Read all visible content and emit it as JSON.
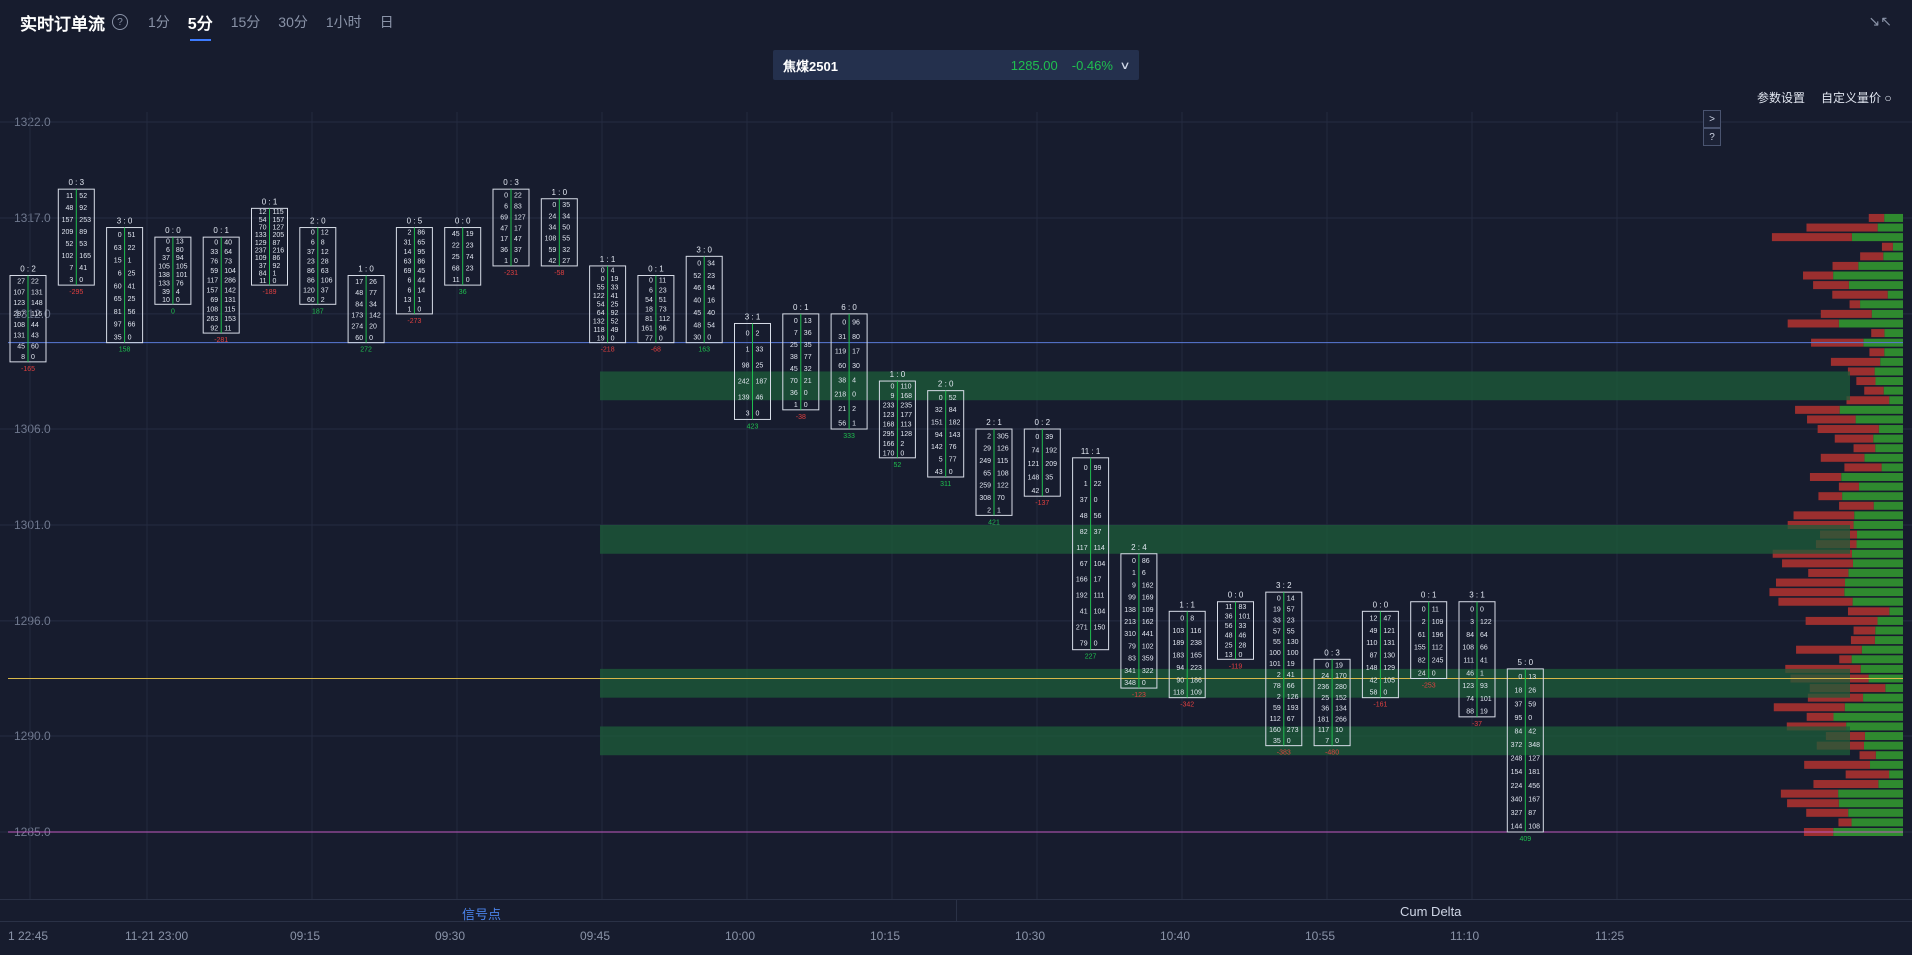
{
  "header": {
    "title": "实时订单流",
    "help": "?",
    "tabs": [
      {
        "label": "1分",
        "active": false
      },
      {
        "label": "5分",
        "active": true
      },
      {
        "label": "15分",
        "active": false
      },
      {
        "label": "30分",
        "active": false
      },
      {
        "label": "1小时",
        "active": false
      },
      {
        "label": "日",
        "active": false
      }
    ]
  },
  "symbol": {
    "name": "焦煤2501",
    "price": "1285.00",
    "change": "-0.46%"
  },
  "actions": {
    "params": "参数设置",
    "custom_price": "自定义量价",
    "side_expand": ">",
    "side_help": "?"
  },
  "bottom_tabs": {
    "left": "信号点",
    "right": "Cum Delta"
  },
  "time_axis": [
    "1 22:45",
    "11-21 23:00",
    "09:15",
    "09:30",
    "09:45",
    "10:00",
    "10:15",
    "10:30",
    "10:40",
    "10:55",
    "11:10",
    "11:25"
  ],
  "colors": {
    "up": "#1fbf4f",
    "down": "#e04040",
    "accent": "#3d7bff",
    "background": "#171c2e"
  },
  "chart_data": {
    "type": "footprint",
    "y_ticks": [
      "1322.0",
      "1317.0",
      "1312.0",
      "1306.0",
      "1301.0",
      "1296.0",
      "1290.0",
      "1285.0"
    ],
    "reference_lines": [
      {
        "price": 1310.5,
        "color": "#5a7ad8"
      },
      {
        "price": 1293.0,
        "color": "#d8b84a"
      },
      {
        "price": 1285.0,
        "color": "#c05ac0"
      }
    ],
    "candles": [
      {
        "top": "0 : 2",
        "hi": 1314.0,
        "lo": 1309.5,
        "buy": [
          27,
          107,
          123,
          287,
          108,
          131,
          45,
          8
        ],
        "sell": [
          22,
          131,
          148,
          116,
          44,
          43,
          60,
          0
        ],
        "delta": "-165"
      },
      {
        "top": "0 : 3",
        "hi": 1318.5,
        "lo": 1313.5,
        "buy": [
          11,
          48,
          157,
          209,
          52,
          102,
          7,
          3
        ],
        "sell": [
          52,
          92,
          253,
          89,
          53,
          165,
          41,
          0
        ],
        "delta": "-295"
      },
      {
        "top": "3 : 0",
        "hi": 1316.5,
        "lo": 1310.5,
        "buy": [
          0,
          63,
          15,
          6,
          60,
          65,
          81,
          97,
          35
        ],
        "sell": [
          51,
          22,
          1,
          25,
          41,
          25,
          56,
          66,
          0
        ],
        "delta": "158"
      },
      {
        "top": "0 : 0",
        "hi": 1316.0,
        "lo": 1312.5,
        "buy": [
          0,
          6,
          37,
          105,
          138,
          133,
          39,
          10
        ],
        "sell": [
          13,
          80,
          94,
          105,
          101,
          76,
          4,
          0
        ],
        "delta": "0"
      },
      {
        "top": "0 : 1",
        "hi": 1316.0,
        "lo": 1311.0,
        "buy": [
          0,
          33,
          76,
          59,
          117,
          157,
          69,
          108,
          263,
          92
        ],
        "sell": [
          40,
          64,
          73,
          104,
          286,
          142,
          131,
          115,
          153,
          11
        ],
        "delta": "-281"
      },
      {
        "top": "0 : 1",
        "hi": 1317.5,
        "lo": 1313.5,
        "buy": [
          12,
          54,
          70,
          133,
          129,
          237,
          109,
          37,
          84,
          11
        ],
        "sell": [
          115,
          157,
          127,
          205,
          87,
          216,
          86,
          92,
          1,
          0
        ],
        "delta": "-189"
      },
      {
        "top": "2 : 0",
        "hi": 1316.5,
        "lo": 1312.5,
        "buy": [
          0,
          6,
          37,
          23,
          86,
          86,
          120,
          60
        ],
        "sell": [
          12,
          8,
          12,
          28,
          63,
          106,
          37,
          2
        ],
        "delta": "187"
      },
      {
        "top": "1 : 0",
        "hi": 1314.0,
        "lo": 1310.5,
        "buy": [
          17,
          48,
          84,
          173,
          274,
          60
        ],
        "sell": [
          26,
          77,
          34,
          142,
          20,
          0
        ],
        "delta": "272"
      },
      {
        "top": "0 : 5",
        "hi": 1316.5,
        "lo": 1312.0,
        "buy": [
          2,
          31,
          14,
          63,
          69,
          6,
          6,
          13,
          1
        ],
        "sell": [
          86,
          65,
          95,
          86,
          45,
          44,
          14,
          1,
          0
        ],
        "delta": "-273"
      },
      {
        "top": "0 : 0",
        "hi": 1316.5,
        "lo": 1313.5,
        "buy": [
          45,
          22,
          25,
          68,
          11
        ],
        "sell": [
          19,
          23,
          74,
          23,
          0
        ],
        "delta": "36"
      },
      {
        "top": "0 : 3",
        "hi": 1318.5,
        "lo": 1314.5,
        "buy": [
          0,
          6,
          69,
          47,
          17,
          36,
          1
        ],
        "sell": [
          22,
          83,
          127,
          17,
          47,
          37,
          0
        ],
        "delta": "-231"
      },
      {
        "top": "1 : 0",
        "hi": 1318.0,
        "lo": 1314.5,
        "buy": [
          0,
          24,
          34,
          108,
          59,
          42
        ],
        "sell": [
          35,
          34,
          50,
          55,
          32,
          27
        ],
        "delta": "-58"
      },
      {
        "top": "1 : 1",
        "hi": 1314.5,
        "lo": 1310.5,
        "buy": [
          0,
          0,
          55,
          122,
          54,
          64,
          132,
          118,
          19
        ],
        "sell": [
          4,
          19,
          33,
          41,
          25,
          92,
          52,
          49,
          0
        ],
        "delta": "-218"
      },
      {
        "top": "0 : 1",
        "hi": 1314.0,
        "lo": 1310.5,
        "buy": [
          0,
          6,
          54,
          18,
          81,
          161,
          77
        ],
        "sell": [
          11,
          23,
          51,
          73,
          112,
          96,
          0
        ],
        "delta": "-68"
      },
      {
        "top": "3 : 0",
        "hi": 1315.0,
        "lo": 1310.5,
        "buy": [
          0,
          52,
          46,
          40,
          45,
          48,
          30
        ],
        "sell": [
          34,
          23,
          94,
          16,
          40,
          54,
          0
        ],
        "delta": "163"
      },
      {
        "top": "3 : 1",
        "hi": 1311.5,
        "lo": 1306.5,
        "buy": [
          0,
          1,
          98,
          242,
          139,
          3
        ],
        "sell": [
          2,
          33,
          25,
          187,
          46,
          0
        ],
        "delta": "423"
      },
      {
        "top": "0 : 1",
        "hi": 1312.0,
        "lo": 1307.0,
        "buy": [
          0,
          7,
          25,
          38,
          45,
          70,
          36,
          1
        ],
        "sell": [
          13,
          36,
          35,
          77,
          32,
          21,
          0,
          0
        ],
        "delta": "-38"
      },
      {
        "top": "6 : 0",
        "hi": 1312.0,
        "lo": 1306.0,
        "buy": [
          0,
          31,
          119,
          60,
          38,
          218,
          21,
          56
        ],
        "sell": [
          96,
          80,
          17,
          30,
          4,
          0,
          2,
          1
        ],
        "delta": "333"
      },
      {
        "top": "1 : 0",
        "hi": 1308.5,
        "lo": 1304.5,
        "buy": [
          0,
          9,
          233,
          123,
          168,
          295,
          166,
          170
        ],
        "sell": [
          110,
          168,
          235,
          177,
          113,
          128,
          2,
          0
        ],
        "delta": "52"
      },
      {
        "top": "2 : 0",
        "hi": 1308.0,
        "lo": 1303.5,
        "buy": [
          0,
          32,
          151,
          94,
          142,
          5,
          43
        ],
        "sell": [
          52,
          84,
          182,
          143,
          76,
          77,
          0
        ],
        "delta": "311"
      },
      {
        "top": "2 : 1",
        "hi": 1306.0,
        "lo": 1301.5,
        "buy": [
          2,
          29,
          249,
          65,
          259,
          308,
          2
        ],
        "sell": [
          305,
          126,
          115,
          108,
          122,
          70,
          1
        ],
        "delta": "421"
      },
      {
        "top": "0 : 2",
        "hi": 1306.0,
        "lo": 1302.5,
        "buy": [
          0,
          74,
          121,
          148,
          42
        ],
        "sell": [
          39,
          192,
          209,
          35,
          0
        ],
        "delta": "-137"
      },
      {
        "top": "11 : 1",
        "hi": 1304.5,
        "lo": 1294.5,
        "buy": [
          0,
          1,
          37,
          48,
          82,
          117,
          67,
          166,
          192,
          41,
          271,
          79
        ],
        "sell": [
          99,
          22,
          0,
          56,
          37,
          114,
          104,
          17,
          111,
          104,
          150,
          0
        ],
        "delta": "227"
      },
      {
        "top": "2 : 4",
        "hi": 1299.5,
        "lo": 1292.5,
        "buy": [
          0,
          1,
          9,
          99,
          138,
          213,
          310,
          79,
          83,
          341,
          348
        ],
        "sell": [
          86,
          6,
          162,
          169,
          109,
          162,
          441,
          102,
          359,
          322,
          0
        ],
        "delta": "-123"
      },
      {
        "top": "1 : 1",
        "hi": 1296.5,
        "lo": 1292.0,
        "buy": [
          0,
          103,
          189,
          183,
          94,
          90,
          118
        ],
        "sell": [
          8,
          116,
          238,
          165,
          223,
          186,
          109
        ],
        "delta": "-342"
      },
      {
        "top": "0 : 0",
        "hi": 1297.0,
        "lo": 1294.0,
        "buy": [
          11,
          36,
          56,
          48,
          25,
          13
        ],
        "sell": [
          83,
          101,
          33,
          46,
          28,
          0
        ],
        "delta": "-119"
      },
      {
        "top": "3 : 2",
        "hi": 1297.5,
        "lo": 1289.5,
        "buy": [
          0,
          19,
          33,
          57,
          55,
          100,
          101,
          2,
          78,
          2,
          59,
          112,
          160,
          35
        ],
        "sell": [
          14,
          57,
          23,
          55,
          130,
          100,
          19,
          41,
          66,
          126,
          193,
          67,
          273,
          0
        ],
        "delta": "-383"
      },
      {
        "top": "0 : 3",
        "hi": 1294.0,
        "lo": 1289.5,
        "buy": [
          0,
          24,
          236,
          25,
          36,
          181,
          117,
          7
        ],
        "sell": [
          19,
          170,
          280,
          152,
          134,
          266,
          10,
          0
        ],
        "delta": "-480"
      },
      {
        "top": "0 : 0",
        "hi": 1296.5,
        "lo": 1292.0,
        "buy": [
          12,
          49,
          110,
          87,
          148,
          42,
          58
        ],
        "sell": [
          47,
          121,
          131,
          130,
          129,
          105,
          0
        ],
        "delta": "-161"
      },
      {
        "top": "0 : 1",
        "hi": 1297.0,
        "lo": 1293.0,
        "buy": [
          0,
          2,
          61,
          155,
          82,
          24
        ],
        "sell": [
          11,
          109,
          196,
          112,
          245,
          0
        ],
        "delta": "-253"
      },
      {
        "top": "3 : 1",
        "hi": 1297.0,
        "lo": 1291.0,
        "buy": [
          0,
          3,
          84,
          108,
          111,
          46,
          123,
          74,
          88
        ],
        "sell": [
          0,
          122,
          64,
          66,
          41,
          1,
          93,
          101,
          19
        ],
        "delta": "-37"
      },
      {
        "top": "5 : 0",
        "hi": 1293.5,
        "lo": 1285.0,
        "buy": [
          0,
          18,
          37,
          95,
          84,
          372,
          248,
          154,
          224,
          340,
          327,
          144
        ],
        "sell": [
          13,
          26,
          59,
          0,
          42,
          348,
          127,
          181,
          456,
          167,
          87,
          108
        ],
        "delta": "409"
      }
    ],
    "volume_profile": "horizontal bars of buy (green) and sell (red) volume per price level, right side"
  }
}
